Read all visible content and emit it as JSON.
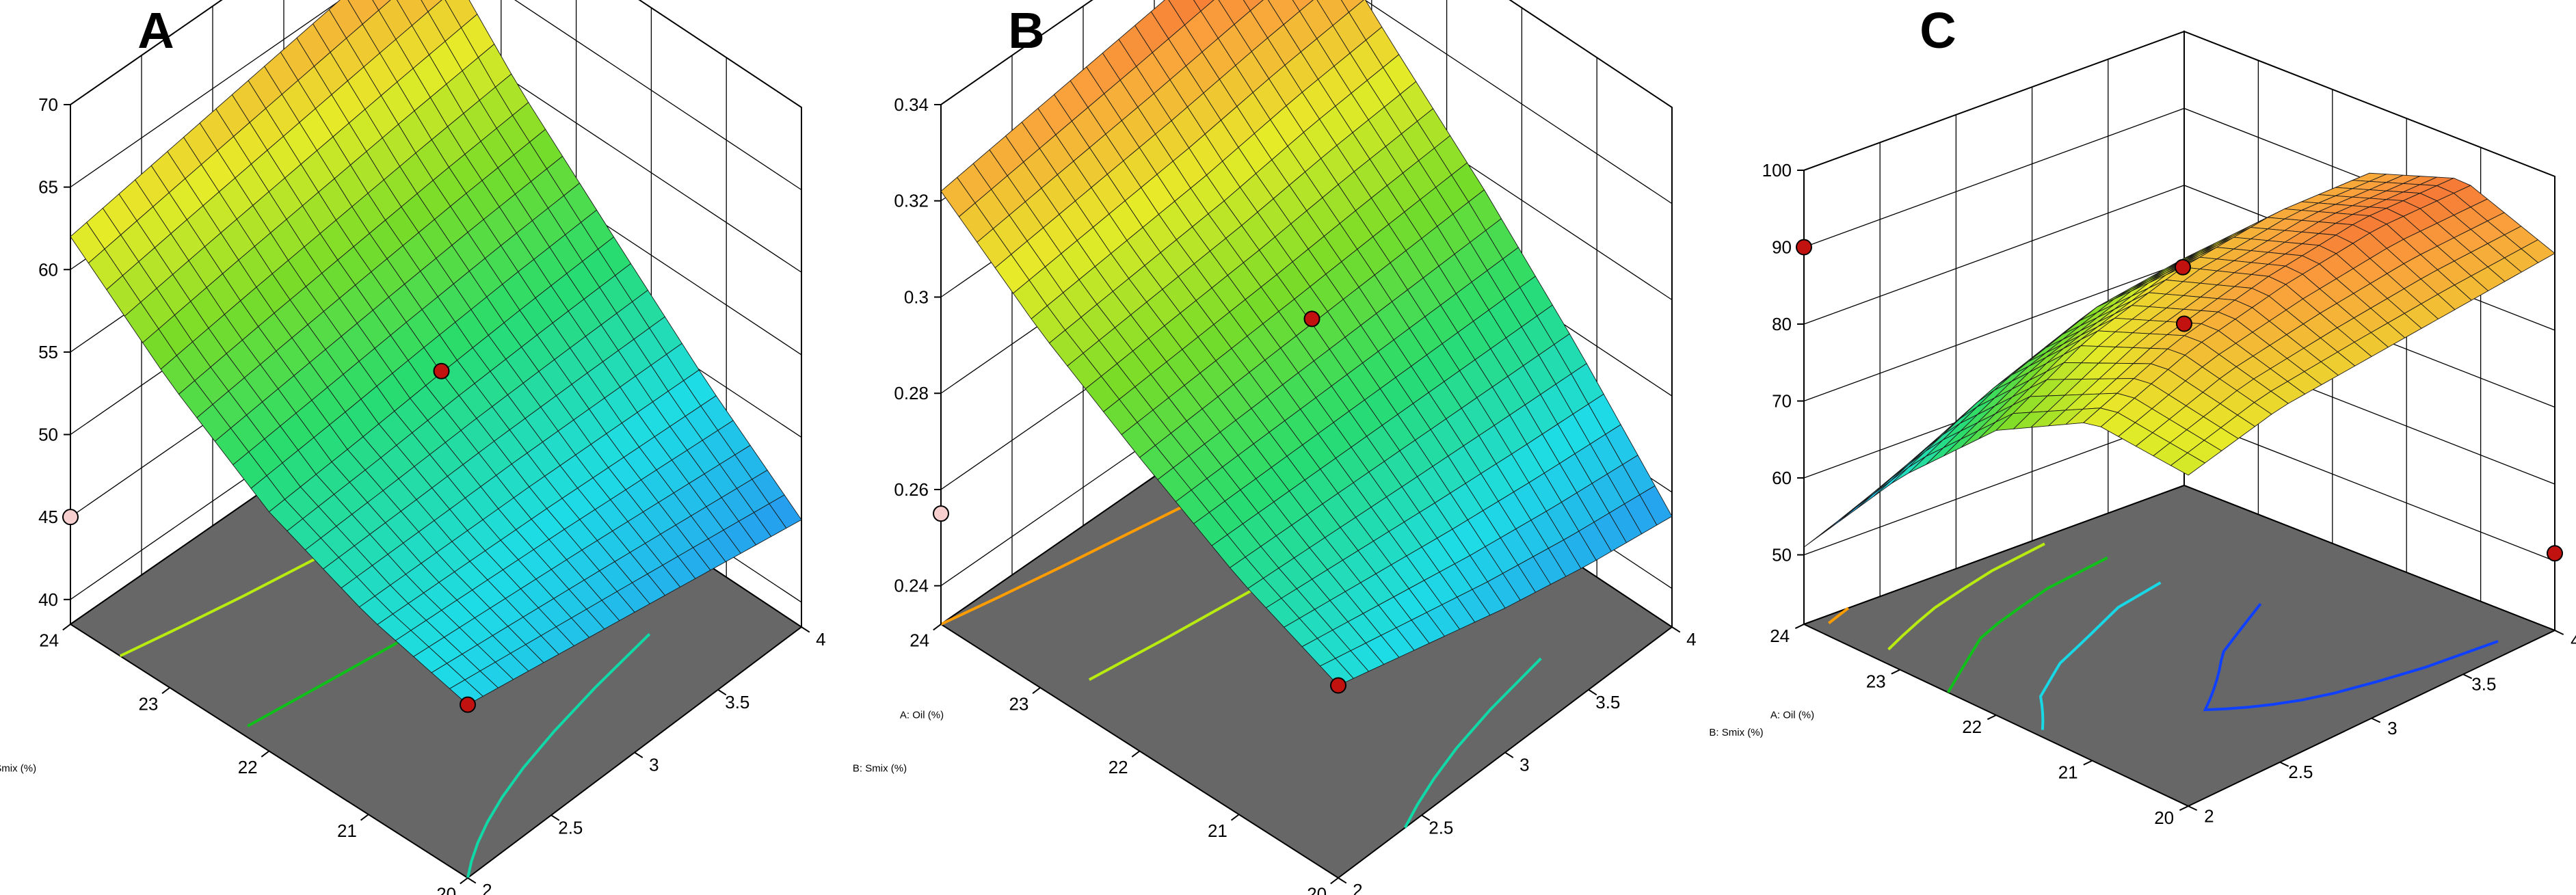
{
  "figure": {
    "type": "response-surface-3d",
    "colors": {
      "floor": "#676767",
      "frame": "#000000",
      "marker": "#c1120f",
      "marker_light": "#f7cfcf"
    }
  },
  "chart_data": [
    {
      "panel": "A",
      "type": "surface",
      "xlabel": "A: Oil (%)",
      "ylabel": "B: Smix (%)",
      "zlabel": "",
      "x_ticks": [
        "2",
        "2.5",
        "3",
        "3.5",
        "4"
      ],
      "y_ticks": [
        "20",
        "21",
        "22",
        "23",
        "24"
      ],
      "z_ticks": [
        "40",
        "45",
        "50",
        "55",
        "60",
        "65",
        "70"
      ],
      "xlim": [
        2,
        4
      ],
      "ylim": [
        20,
        24
      ],
      "zlim": [
        38.5,
        70
      ],
      "surface": {
        "x": [
          2,
          2.5,
          3,
          3.5,
          4
        ],
        "y": [
          20,
          21,
          22,
          23,
          24
        ],
        "z": [
          [
            49.0,
            48.0,
            47.0,
            46.0,
            45.0
          ],
          [
            50.5,
            50.3,
            50.1,
            49.8,
            49.5
          ],
          [
            53.0,
            53.4,
            53.9,
            54.3,
            54.6
          ],
          [
            57.0,
            57.8,
            58.5,
            59.2,
            59.8
          ],
          [
            62.0,
            63.0,
            64.0,
            65.0,
            66.0
          ]
        ]
      },
      "design_points": [
        {
          "x": 2,
          "y": 24,
          "z": 45,
          "marker": "light"
        },
        {
          "x": 2,
          "y": 20,
          "z": 49,
          "marker": "dark"
        },
        {
          "x": 3,
          "y": 22,
          "z": 54,
          "marker": "dark"
        },
        {
          "x": 4,
          "y": 24,
          "z": 66,
          "marker": "light"
        }
      ],
      "contour_colors": [
        "#18b4e6",
        "#10d8a6",
        "#10c01a",
        "#b8ec10",
        "#ff9d00"
      ]
    },
    {
      "panel": "B",
      "type": "surface",
      "xlabel": "A: Oil (%)",
      "ylabel": "B: Smix (%)",
      "zlabel": "",
      "x_ticks": [
        "2",
        "2.5",
        "3",
        "3.5",
        "4"
      ],
      "y_ticks": [
        "20",
        "21",
        "22",
        "23",
        "24"
      ],
      "z_ticks": [
        "0.24",
        "0.26",
        "0.28",
        "0.3",
        "0.32",
        "0.34"
      ],
      "xlim": [
        2,
        4
      ],
      "ylim": [
        20,
        24
      ],
      "zlim": [
        0.232,
        0.34
      ],
      "surface": {
        "x": [
          2,
          2.5,
          3,
          3.5,
          4
        ],
        "y": [
          20,
          21,
          22,
          23,
          24
        ],
        "z": [
          [
            0.272,
            0.267,
            0.262,
            0.258,
            0.255
          ],
          [
            0.281,
            0.28,
            0.279,
            0.278,
            0.277
          ],
          [
            0.293,
            0.294,
            0.295,
            0.296,
            0.297
          ],
          [
            0.306,
            0.308,
            0.31,
            0.313,
            0.315
          ],
          [
            0.322,
            0.325,
            0.328,
            0.331,
            0.334
          ]
        ]
      },
      "design_points": [
        {
          "x": 2,
          "y": 24,
          "z": 0.255,
          "marker": "light"
        },
        {
          "x": 2,
          "y": 20,
          "z": 0.272,
          "marker": "dark"
        },
        {
          "x": 3,
          "y": 22,
          "z": 0.296,
          "marker": "dark"
        },
        {
          "x": 4,
          "y": 24,
          "z": 0.334,
          "marker": "dark"
        }
      ],
      "contour_colors": [
        "#18b4e6",
        "#10d8a6",
        "#10c01a",
        "#b8ec10",
        "#ff9d00"
      ]
    },
    {
      "panel": "C",
      "type": "surface",
      "xlabel": "A: Oil (%)",
      "ylabel": "B: Smix (%)",
      "zlabel": "",
      "x_ticks": [
        "2",
        "2.5",
        "3",
        "3.5",
        "4"
      ],
      "y_ticks": [
        "20",
        "21",
        "22",
        "23",
        "24"
      ],
      "z_ticks": [
        "50",
        "60",
        "70",
        "80",
        "90",
        "100"
      ],
      "xlim": [
        2,
        4
      ],
      "ylim": [
        20,
        24
      ],
      "zlim": [
        44,
        100
      ],
      "surface": {
        "x": [
          2,
          2.5,
          3,
          3.5,
          4
        ],
        "y": [
          20,
          21,
          22,
          23,
          24
        ],
        "z": [
          [
            84,
            87,
            88,
            89,
            90
          ],
          [
            85,
            90,
            93,
            95,
            95
          ],
          [
            78,
            85,
            89,
            91,
            91
          ],
          [
            66,
            73,
            78,
            80,
            80
          ],
          [
            51,
            56,
            60,
            62,
            62
          ]
        ]
      },
      "design_points": [
        {
          "x": 2,
          "y": 24,
          "z": 90,
          "marker": "dark"
        },
        {
          "x": 3,
          "y": 22,
          "z": 89,
          "marker": "dark"
        },
        {
          "x": 4,
          "y": 24,
          "z": 62,
          "marker": "dark"
        },
        {
          "x": 4,
          "y": 20,
          "z": 51,
          "marker": "dark"
        }
      ],
      "contour_colors": [
        "#ff9d00",
        "#b8ec10",
        "#10c01a",
        "#18d8e6",
        "#1040ff"
      ]
    }
  ]
}
